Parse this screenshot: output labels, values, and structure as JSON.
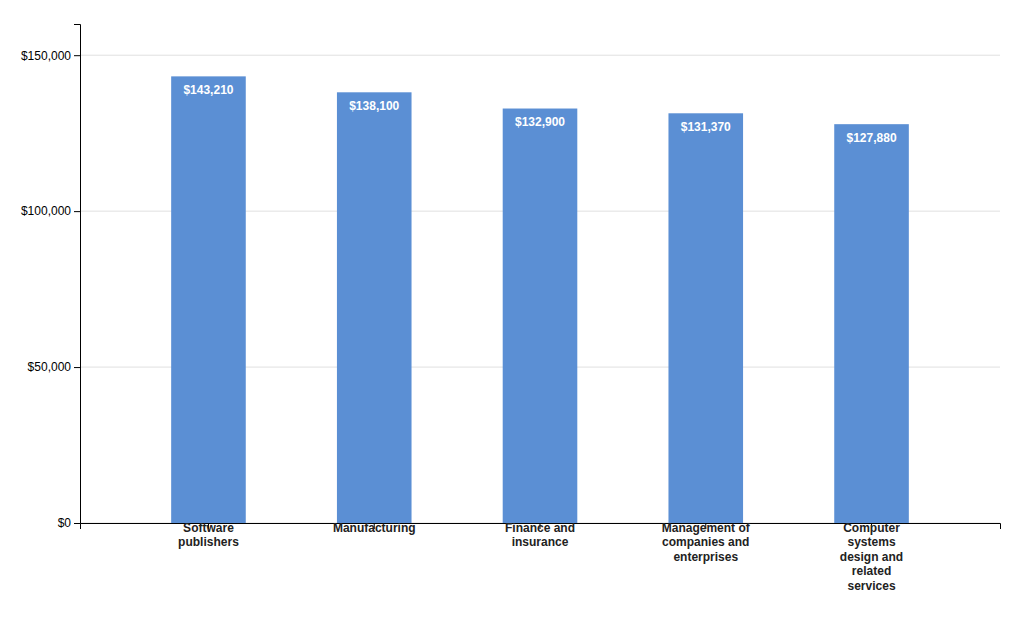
{
  "chart_data": {
    "type": "bar",
    "categories": [
      "Software\npublishers",
      "Manufacturing",
      "Finance and\ninsurance",
      "Management of\ncompanies and\nenterprises",
      "Computer\nsystems\ndesign and\nrelated\nservices"
    ],
    "values": [
      143210,
      138100,
      132900,
      131370,
      127880
    ],
    "value_labels": [
      "$143,210",
      "$138,100",
      "$132,900",
      "$131,370",
      "$127,880"
    ],
    "color": "#5B8FD4",
    "ylim": [
      0,
      160000
    ],
    "yticks": [
      {
        "value": 0,
        "label": "$0"
      },
      {
        "value": 50000,
        "label": "$50,000"
      },
      {
        "value": 100000,
        "label": "$100,000"
      },
      {
        "value": 150000,
        "label": "$150,000"
      }
    ],
    "grid": true,
    "data_labels": true
  }
}
